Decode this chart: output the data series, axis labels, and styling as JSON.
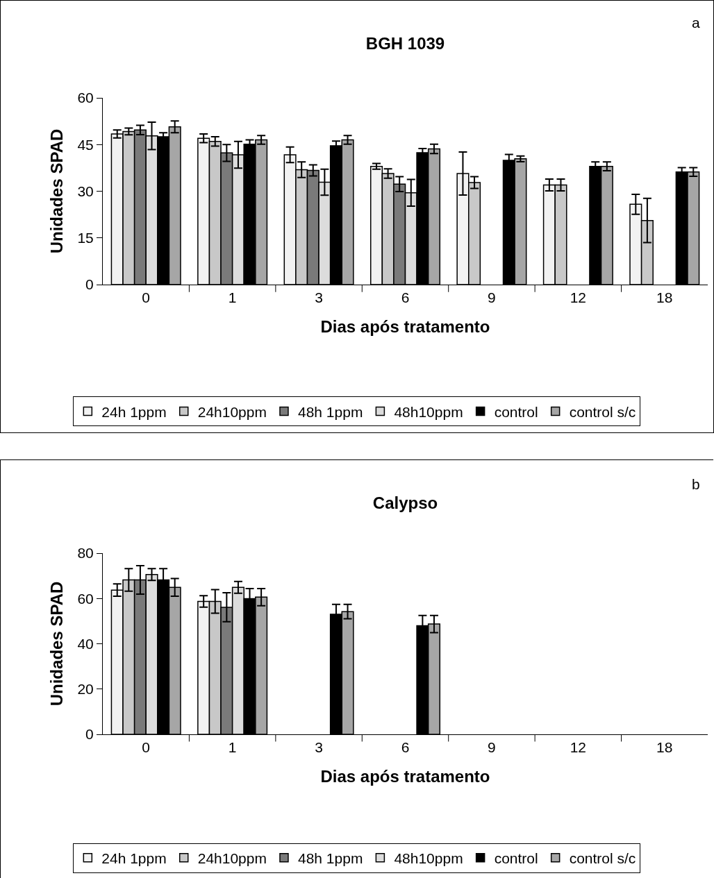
{
  "chart_data": [
    {
      "type": "bar",
      "title": "BGH 1039",
      "xlabel": "Dias após tratamento",
      "ylabel": "Unidades SPAD",
      "annotations": [
        "a"
      ],
      "categories": [
        "0",
        "1",
        "3",
        "6",
        "9",
        "12",
        "18"
      ],
      "ylim": [
        0,
        60
      ],
      "yticks": [
        0,
        15,
        30,
        45,
        60
      ],
      "grid": false,
      "legend": "bottom",
      "series": [
        {
          "name": "24h 1ppm",
          "color": "#f2f2f2",
          "values": [
            48.4,
            47.0,
            41.7,
            38.0,
            35.7,
            32.0,
            25.8
          ],
          "errors": [
            1.3,
            1.4,
            2.5,
            0.9,
            6.9,
            1.9,
            3.2
          ]
        },
        {
          "name": "24h10ppm",
          "color": "#c8c8c8",
          "values": [
            49.2,
            46.0,
            36.9,
            35.7,
            32.8,
            32.0,
            20.6
          ],
          "errors": [
            1.1,
            1.5,
            2.5,
            1.5,
            1.9,
            1.9,
            7.1
          ]
        },
        {
          "name": "48h 1ppm",
          "color": "#7a7a7a",
          "values": [
            49.7,
            42.3,
            36.7,
            32.3,
            null,
            null,
            null
          ],
          "errors": [
            1.5,
            2.7,
            1.8,
            2.4,
            null,
            null,
            null
          ]
        },
        {
          "name": "48h10ppm",
          "color": "#dcdcdc",
          "values": [
            47.8,
            41.7,
            32.9,
            29.5,
            null,
            null,
            null
          ],
          "errors": [
            4.4,
            4.3,
            4.2,
            4.3,
            null,
            null,
            null
          ]
        },
        {
          "name": "control",
          "color": "#000000",
          "values": [
            47.5,
            45.1,
            44.6,
            42.4,
            39.9,
            38.0,
            36.2
          ],
          "errors": [
            1.3,
            1.4,
            1.5,
            1.3,
            1.9,
            1.4,
            1.4
          ]
        },
        {
          "name": "control s/c",
          "color": "#a6a6a6",
          "values": [
            50.7,
            46.5,
            46.5,
            43.6,
            40.4,
            38.0,
            36.2
          ],
          "errors": [
            1.9,
            1.4,
            1.4,
            1.5,
            0.9,
            1.4,
            1.4
          ]
        }
      ]
    },
    {
      "type": "bar",
      "title": "Calypso",
      "xlabel": "Dias após tratamento",
      "ylabel": "Unidades SPAD",
      "annotations": [
        "b"
      ],
      "categories": [
        "0",
        "1",
        "3",
        "6",
        "9",
        "12",
        "18"
      ],
      "ylim": [
        0,
        80
      ],
      "yticks": [
        0,
        20,
        40,
        60,
        80
      ],
      "grid": false,
      "legend": "bottom",
      "series": [
        {
          "name": "24h 1ppm",
          "color": "#f2f2f2",
          "values": [
            63.7,
            58.7,
            null,
            null,
            null,
            null,
            null
          ],
          "errors": [
            2.7,
            2.5,
            null,
            null,
            null,
            null,
            null
          ]
        },
        {
          "name": "24h10ppm",
          "color": "#c8c8c8",
          "values": [
            68.2,
            58.7,
            null,
            null,
            null,
            null,
            null
          ],
          "errors": [
            5.0,
            5.2,
            null,
            null,
            null,
            null,
            null
          ]
        },
        {
          "name": "48h 1ppm",
          "color": "#7a7a7a",
          "values": [
            68.2,
            56.1,
            null,
            null,
            null,
            null,
            null
          ],
          "errors": [
            6.3,
            6.4,
            null,
            null,
            null,
            null,
            null
          ]
        },
        {
          "name": "48h10ppm",
          "color": "#dcdcdc",
          "values": [
            70.6,
            64.9,
            null,
            null,
            null,
            null,
            null
          ],
          "errors": [
            2.6,
            2.6,
            null,
            null,
            null,
            null,
            null
          ]
        },
        {
          "name": "control",
          "color": "#000000",
          "values": [
            68.2,
            59.9,
            53.0,
            48.0,
            null,
            null,
            null
          ],
          "errors": [
            5.0,
            4.5,
            4.4,
            4.5,
            null,
            null,
            null
          ]
        },
        {
          "name": "control s/c",
          "color": "#a6a6a6",
          "values": [
            64.9,
            60.6,
            54.2,
            48.7,
            null,
            null,
            null
          ],
          "errors": [
            3.9,
            3.8,
            3.2,
            3.8,
            null,
            null,
            null
          ]
        }
      ]
    }
  ]
}
